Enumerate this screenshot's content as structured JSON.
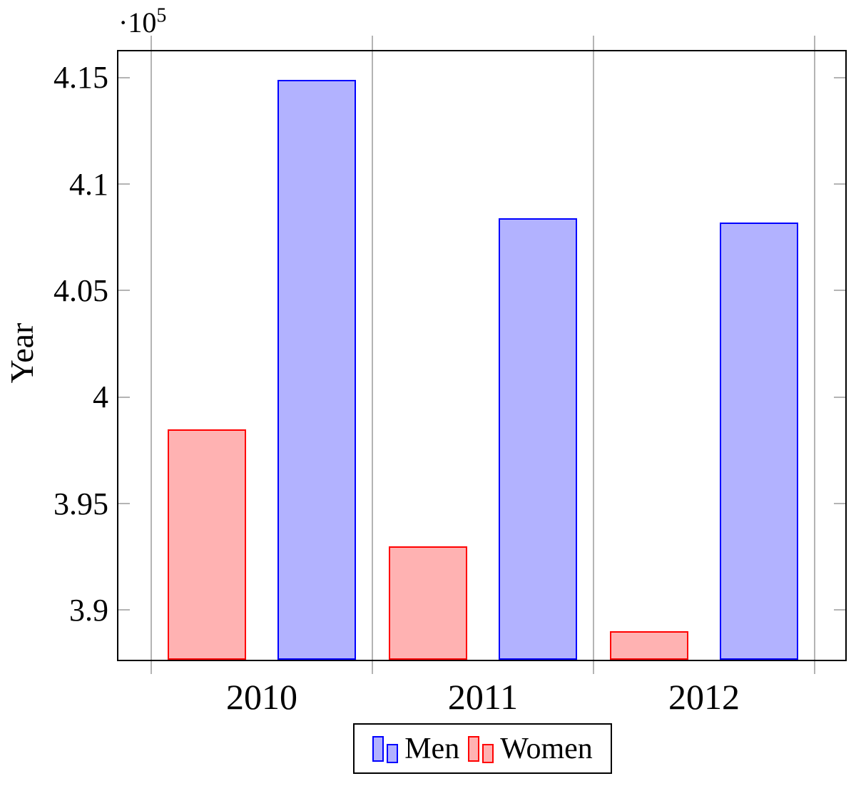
{
  "chart_data": {
    "type": "bar",
    "title": "",
    "xlabel": "",
    "ylabel": "Year",
    "y_axis_multiplier": {
      "dot": "·",
      "base": "10",
      "exponent": "5"
    },
    "categories": [
      "2010",
      "2011",
      "2012"
    ],
    "series": [
      {
        "name": "Men",
        "bar_side": "right",
        "edge_color": "#0000ff",
        "fill_color": "#b2b2ff",
        "values": [
          414900,
          408400,
          408200
        ]
      },
      {
        "name": "Women",
        "bar_side": "left",
        "edge_color": "#ff0000",
        "fill_color": "#ffb2b2",
        "values": [
          398500,
          393000,
          389000
        ]
      }
    ],
    "ylim": [
      387667,
      416233
    ],
    "yticks": [
      {
        "value": 390000,
        "label": "3.9"
      },
      {
        "value": 395000,
        "label": "3.95"
      },
      {
        "value": 400000,
        "label": "4"
      },
      {
        "value": 405000,
        "label": "4.05"
      },
      {
        "value": 410000,
        "label": "4.1"
      },
      {
        "value": 415000,
        "label": "4.15"
      }
    ],
    "grid": "vertical lines at category boundaries, ticks mirrored on both axes",
    "legend_position": "below center, horizontal, boxed",
    "colors": {
      "grid": "#b4b4b4",
      "axis": "#000000",
      "background": "#ffffff"
    }
  }
}
